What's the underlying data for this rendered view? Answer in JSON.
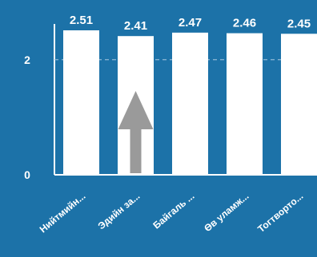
{
  "colors": {
    "background": "#1c72a8",
    "bar": "#ffffff",
    "label_text": "#ffffff",
    "axis": "#ffffff",
    "gridline": "#8fb9d6",
    "arrow": "#9a9a9a"
  },
  "chart_data": {
    "type": "bar",
    "title": "",
    "xlabel": "",
    "ylabel": "",
    "categories": [
      "Нийтмийн...",
      "Эдийн за...",
      "Байгаль ...",
      "Өв уламж...",
      "Тогтворто..."
    ],
    "values": [
      2.51,
      2.41,
      2.47,
      2.46,
      2.45
    ],
    "data_labels": [
      "2.51",
      "2.41",
      "2.47",
      "2.46",
      "2.45"
    ],
    "y_ticks": [
      0,
      2
    ],
    "y_tick_labels": [
      "0",
      "2"
    ],
    "ylim": [
      0,
      2.55
    ],
    "grid": "dashed line at y=2",
    "annotations": [
      {
        "type": "arrow",
        "direction": "up",
        "target_category": "Эдийн за...",
        "icon": "up-arrow-icon"
      }
    ]
  }
}
